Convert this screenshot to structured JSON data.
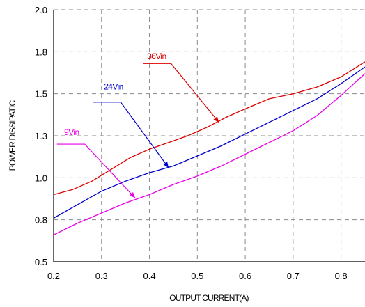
{
  "chart_data": {
    "type": "line",
    "xlabel": "OUTPUT CURRENT(A)",
    "ylabel": "POWER DISSIPATIC",
    "xlim": [
      0.2,
      0.85
    ],
    "ylim": [
      0.5,
      2.0
    ],
    "x_ticks": [
      0.2,
      0.3,
      0.4,
      0.5,
      0.6,
      0.7,
      0.8
    ],
    "x_tick_labels": [
      "0.2",
      "0.3",
      "0.4",
      "0.5",
      "0.6",
      "0.7",
      "0.8"
    ],
    "y_ticks": [
      0.5,
      0.75,
      1.0,
      1.25,
      1.5,
      1.75,
      2.0
    ],
    "y_tick_labels": [
      "0.5",
      "0.8",
      "1.0",
      "1.3",
      "1.5",
      "1.8",
      "2.0"
    ],
    "grid": true,
    "series": [
      {
        "name": "36Vin",
        "color": "#dd0000",
        "x": [
          0.2,
          0.24,
          0.28,
          0.32,
          0.36,
          0.4,
          0.44,
          0.48,
          0.52,
          0.56,
          0.6,
          0.65,
          0.7,
          0.75,
          0.8,
          0.85
        ],
        "y": [
          0.9,
          0.93,
          0.98,
          1.05,
          1.12,
          1.17,
          1.21,
          1.25,
          1.3,
          1.36,
          1.41,
          1.47,
          1.5,
          1.54,
          1.6,
          1.69
        ]
      },
      {
        "name": "24Vin",
        "color": "#0000cc",
        "x": [
          0.2,
          0.25,
          0.3,
          0.35,
          0.4,
          0.45,
          0.5,
          0.55,
          0.6,
          0.65,
          0.7,
          0.75,
          0.8,
          0.85
        ],
        "y": [
          0.76,
          0.84,
          0.92,
          0.98,
          1.03,
          1.07,
          1.13,
          1.19,
          1.26,
          1.33,
          1.4,
          1.47,
          1.56,
          1.66
        ]
      },
      {
        "name": "9Vin",
        "color": "#e800e8",
        "x": [
          0.2,
          0.25,
          0.3,
          0.35,
          0.4,
          0.45,
          0.5,
          0.55,
          0.6,
          0.65,
          0.7,
          0.75,
          0.8,
          0.85
        ],
        "y": [
          0.66,
          0.73,
          0.79,
          0.85,
          0.9,
          0.96,
          1.01,
          1.07,
          1.14,
          1.21,
          1.28,
          1.37,
          1.49,
          1.62
        ]
      }
    ],
    "annotations": [
      {
        "series": "36Vin",
        "text": "36Vin",
        "label_x": 0.395,
        "label_y": 1.68,
        "elbow_x": 0.445,
        "elbow_y": 1.68,
        "tip_x": 0.545,
        "tip_y": 1.33
      },
      {
        "series": "24Vin",
        "text": "24Vin",
        "label_x": 0.305,
        "label_y": 1.5,
        "elbow_x": 0.34,
        "elbow_y": 1.45,
        "tip_x": 0.44,
        "tip_y": 1.06
      },
      {
        "series": "9Vin",
        "text": "9Vin",
        "label_x": 0.222,
        "label_y": 1.23,
        "elbow_x": 0.265,
        "elbow_y": 1.2,
        "tip_x": 0.37,
        "tip_y": 0.88
      }
    ]
  }
}
